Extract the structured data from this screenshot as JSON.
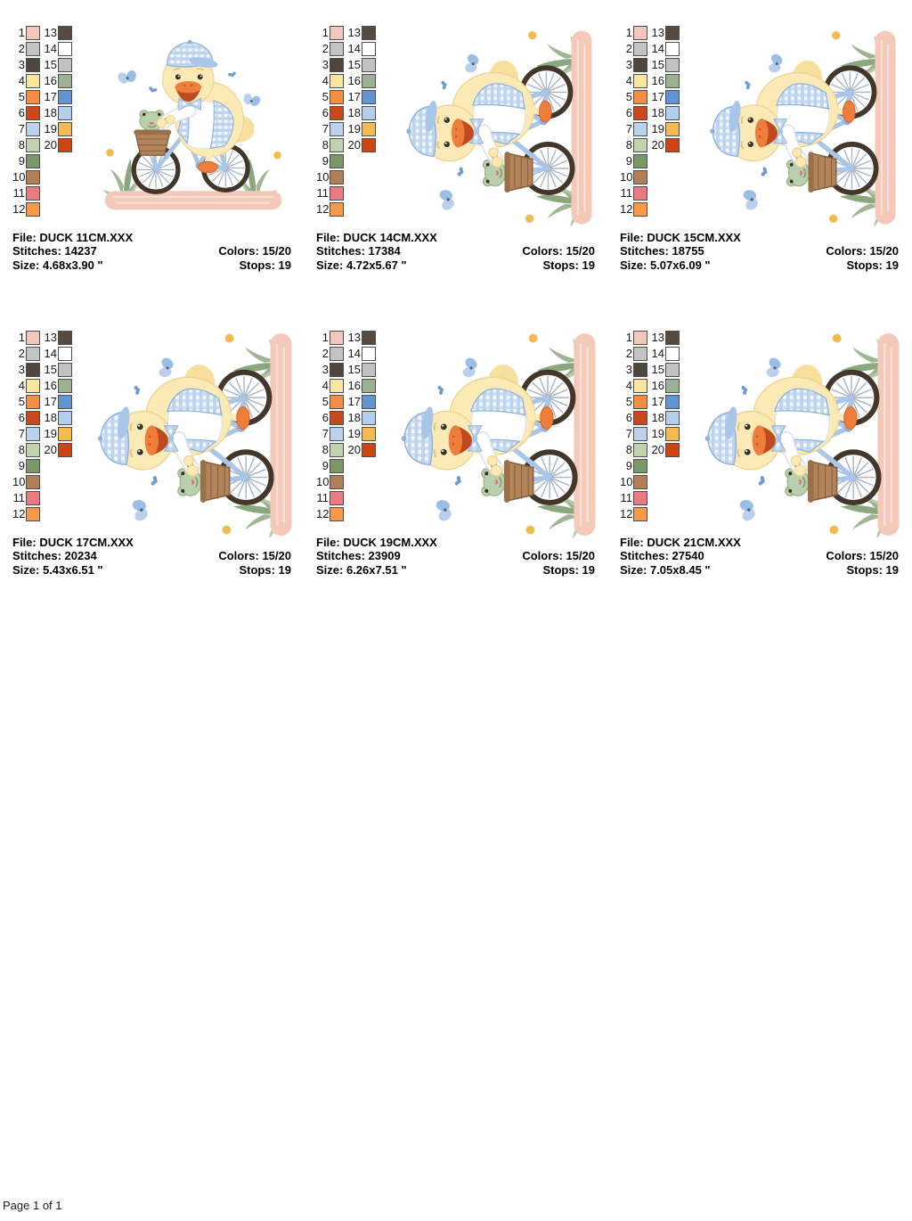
{
  "page": {
    "footer": "Page 1 of 1"
  },
  "labels": {
    "file": "File:",
    "stitches": "Stitches:",
    "size": "Size:",
    "colors": "Colors:",
    "stops": "Stops:"
  },
  "palette": {
    "numbers": [
      "1",
      "2",
      "3",
      "4",
      "5",
      "6",
      "7",
      "8",
      "9",
      "10",
      "11",
      "12",
      "13",
      "14",
      "15",
      "16",
      "17",
      "18",
      "19",
      "20"
    ],
    "colors": [
      "#f2c6ba",
      "#c3c3c3",
      "#4f463e",
      "#f9e5a0",
      "#f58e44",
      "#c8491c",
      "#bad2ee",
      "#c0d2ae",
      "#7a9768",
      "#b07f58",
      "#ea7a82",
      "#f69a4a",
      "#574b40",
      "#ffffff",
      "#c2c2c2",
      "#9cb192",
      "#6294d2",
      "#b4cfeb",
      "#f2ba50",
      "#cc4512"
    ]
  },
  "cards": [
    {
      "file": "DUCK 11CM.XXX",
      "stitches": "14237",
      "size": "4.68x3.90 \"",
      "colors": "15/20",
      "stops": "19",
      "orientation": "upright"
    },
    {
      "file": "DUCK 14CM.XXX",
      "stitches": "17384",
      "size": "4.72x5.67 \"",
      "colors": "15/20",
      "stops": "19",
      "orientation": "rotated"
    },
    {
      "file": "DUCK 15CM.XXX",
      "stitches": "18755",
      "size": "5.07x6.09 \"",
      "colors": "15/20",
      "stops": "19",
      "orientation": "rotated"
    },
    {
      "file": "DUCK 17CM.XXX",
      "stitches": "20234",
      "size": "5.43x6.51 \"",
      "colors": "15/20",
      "stops": "19",
      "orientation": "rotated"
    },
    {
      "file": "DUCK 19CM.XXX",
      "stitches": "23909",
      "size": "6.26x7.51 \"",
      "colors": "15/20",
      "stops": "19",
      "orientation": "rotated"
    },
    {
      "file": "DUCK 21CM.XXX",
      "stitches": "27540",
      "size": "7.05x8.45 \"",
      "colors": "15/20",
      "stops": "19",
      "orientation": "rotated"
    }
  ],
  "art": {
    "colors": {
      "path_pink": "#f4c9ba",
      "path_stripe": "#fadfd6",
      "tire": "#43362b",
      "frame_blue": "#a9c6e8",
      "frame_blue_dark": "#8fb2dc",
      "duck_body": "#fbeab5",
      "duck_shade": "#edd28d",
      "beak_light": "#ef7d3b",
      "beak_dark": "#bf4a20",
      "gingham_blue": "#bcd4ef",
      "basket": "#b3835c",
      "basket_line": "#86603f",
      "frog": "#b9cfad",
      "frog_dark": "#93ad85",
      "grass": "#8aa77e",
      "grass_light": "#b7c9aa",
      "flower_yellow": "#f2bb50",
      "heart_blue": "#6d9bd4",
      "butterfly_light": "#b8d0ee",
      "butterfly_mid": "#9cbde6"
    }
  }
}
